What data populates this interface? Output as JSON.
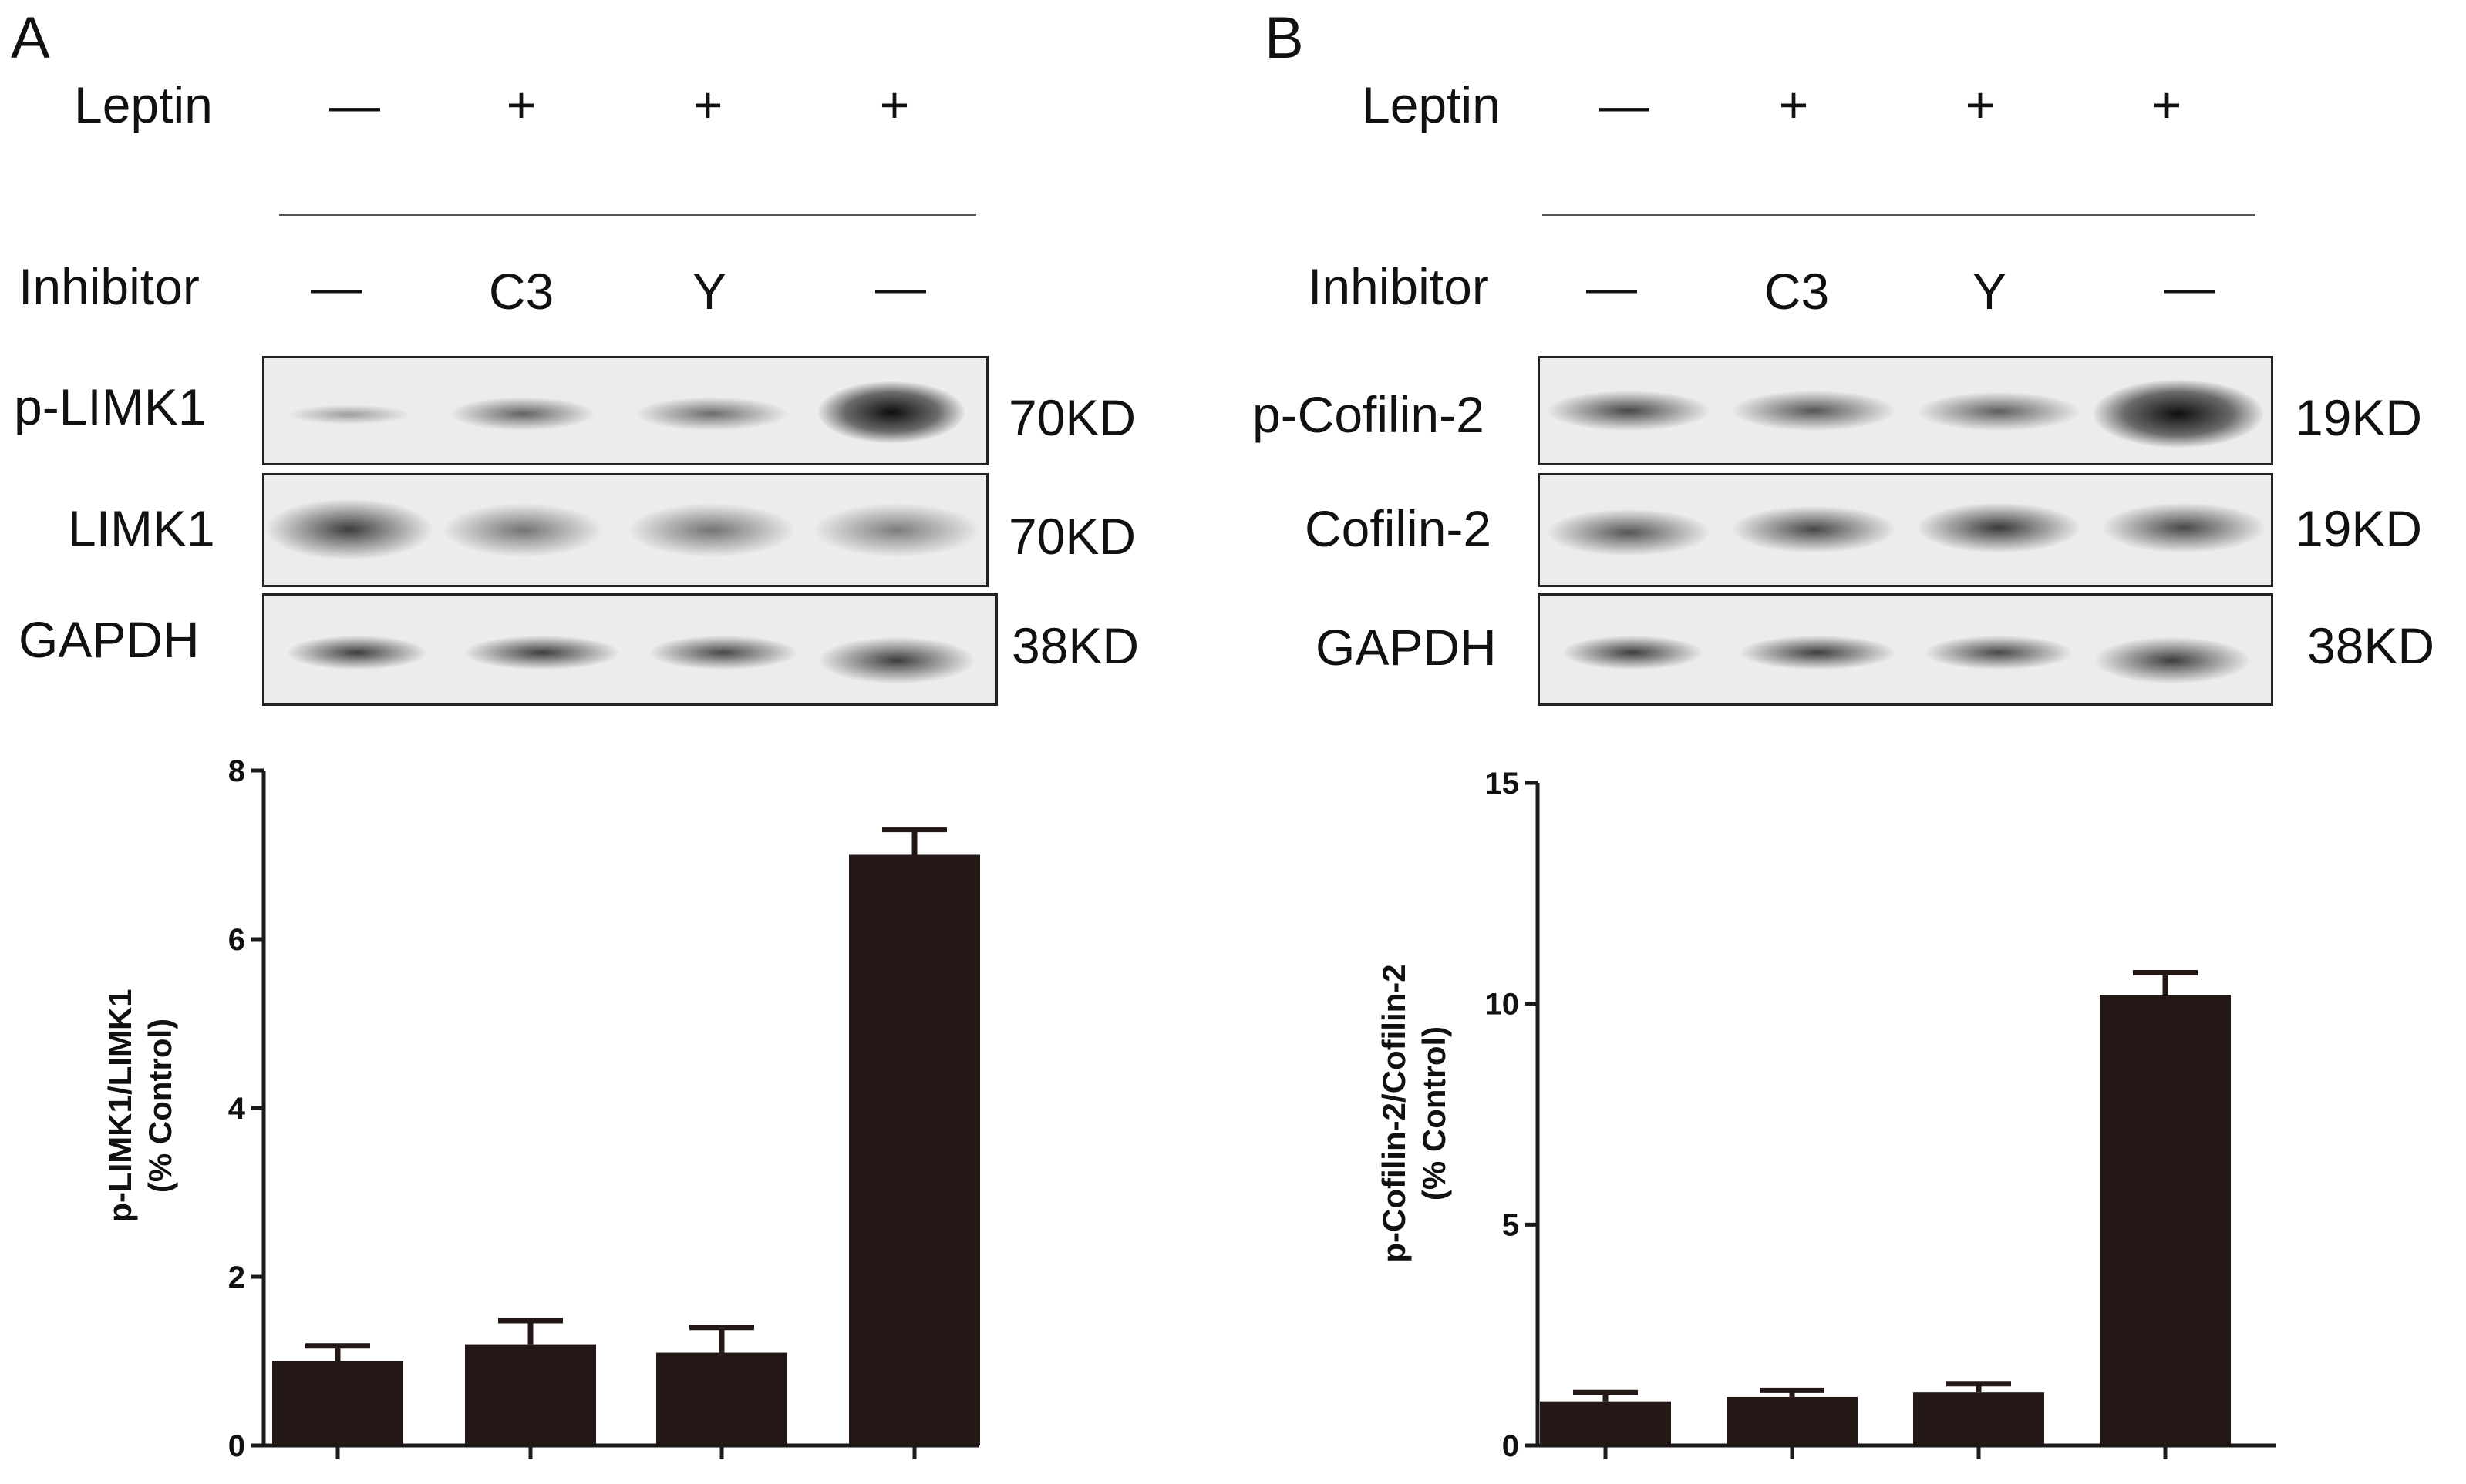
{
  "panels": [
    {
      "letter": "A",
      "leptin_label": "Leptin",
      "leptin": [
        "—",
        "+",
        "+",
        "+"
      ],
      "inhibitor_label": "Inhibitor",
      "inhibitor": [
        "—",
        "C3",
        "Y",
        "—"
      ],
      "blots": [
        {
          "protein": "p-LIMK1",
          "kd": "70KD"
        },
        {
          "protein": "LIMK1",
          "kd": "70KD"
        },
        {
          "protein": "GAPDH",
          "kd": "38KD"
        }
      ]
    },
    {
      "letter": "B",
      "leptin_label": "Leptin",
      "leptin": [
        "—",
        "+",
        "+",
        "+"
      ],
      "inhibitor_label": "Inhibitor",
      "inhibitor": [
        "—",
        "C3",
        "Y",
        "—"
      ],
      "blots": [
        {
          "protein": "p-Cofilin-2",
          "kd": "19KD"
        },
        {
          "protein": "Cofilin-2",
          "kd": "19KD"
        },
        {
          "protein": "GAPDH",
          "kd": "38KD"
        }
      ]
    }
  ],
  "chart_data": [
    {
      "type": "bar",
      "categories": [
        "",
        "",
        "",
        ""
      ],
      "values": [
        1.0,
        1.2,
        1.1,
        7.0
      ],
      "errors": [
        0.18,
        0.28,
        0.3,
        0.3
      ],
      "ylabel_line1": "p-LIMK1/LIMK1",
      "ylabel_line2": "(% Control)",
      "ylim": [
        0,
        8
      ],
      "yticks": [
        0,
        2,
        4,
        6,
        8
      ],
      "color": "#231815"
    },
    {
      "type": "bar",
      "categories": [
        "",
        "",
        "",
        ""
      ],
      "values": [
        1.0,
        1.1,
        1.2,
        10.2
      ],
      "errors": [
        0.2,
        0.15,
        0.2,
        0.5
      ],
      "ylabel_line1": "p-Cofilin-2/Cofilin-2",
      "ylabel_line2": "(% Control)",
      "ylim": [
        0,
        15
      ],
      "yticks": [
        0,
        5,
        10,
        15
      ],
      "color": "#231815"
    }
  ]
}
